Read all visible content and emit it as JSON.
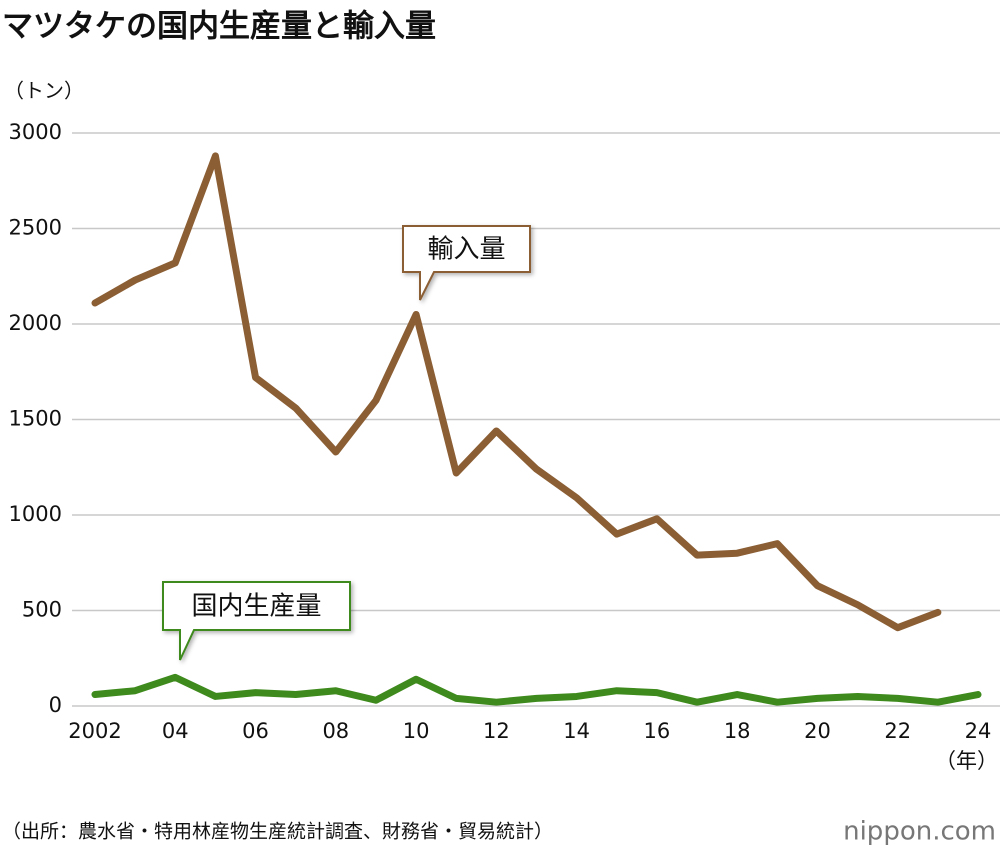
{
  "chart_data": {
    "type": "line",
    "title": "マツタケの国内生産量と輸入量",
    "y_unit_label": "（トン）",
    "x_unit_label": "（年）",
    "source": "（出所：農水省・特用林産物生産統計調査、財務省・貿易統計）",
    "logo": "nippon.com",
    "categories": [
      "2002",
      null,
      "04",
      null,
      "06",
      null,
      "08",
      null,
      "10",
      null,
      "12",
      null,
      "14",
      null,
      "16",
      null,
      "18",
      null,
      "20",
      null,
      "22",
      null,
      "24"
    ],
    "series": [
      {
        "name": "輸入量",
        "color": "#8b5e34",
        "values": [
          2110,
          2230,
          2320,
          2880,
          1720,
          1560,
          1330,
          1600,
          2050,
          1220,
          1440,
          1240,
          1090,
          900,
          980,
          790,
          800,
          850,
          630,
          530,
          410,
          490,
          null
        ]
      },
      {
        "name": "国内生産量",
        "color": "#3e8a1c",
        "values": [
          60,
          80,
          150,
          50,
          70,
          60,
          80,
          30,
          140,
          40,
          20,
          40,
          50,
          80,
          70,
          20,
          60,
          20,
          40,
          50,
          40,
          20,
          60
        ]
      }
    ],
    "ylim": [
      0,
      3000
    ],
    "yticks": [
      0,
      500,
      1000,
      1500,
      2000,
      2500,
      3000
    ],
    "grid": true
  }
}
